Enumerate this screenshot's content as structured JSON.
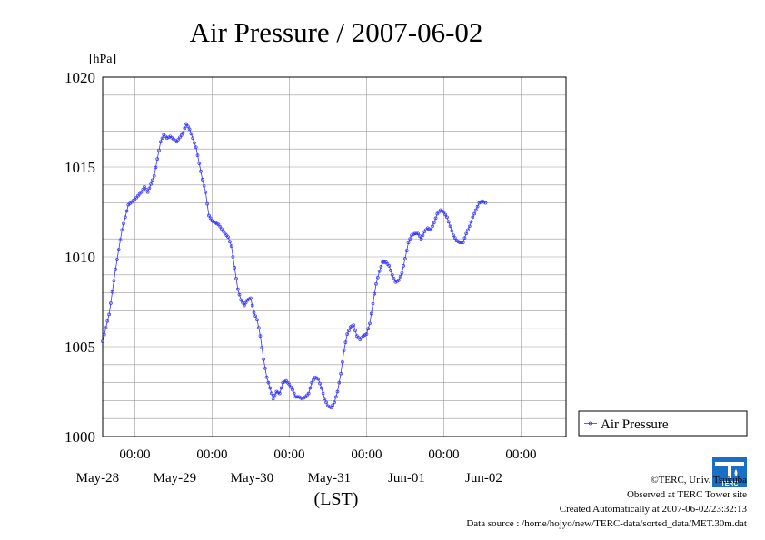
{
  "chart_data": {
    "type": "line",
    "title": "Air Pressure / 2007-06-02",
    "ylabel": "[hPa]",
    "xlabel": "(LST)",
    "ylim": [
      1000,
      1020
    ],
    "yticks": [
      1000,
      1005,
      1010,
      1015,
      1020
    ],
    "xlim": [
      0,
      144
    ],
    "x_unit": "hours from 2007-05-27 14:00 LST (data column hidden - date labels shown below)",
    "x_tick_time_label": "00:00",
    "x_ticks": [
      {
        "time": "00:00",
        "date": "May-28"
      },
      {
        "time": "00:00",
        "date": "May-29"
      },
      {
        "time": "00:00",
        "date": "May-30"
      },
      {
        "time": "00:00",
        "date": "May-31"
      },
      {
        "time": "00:00",
        "date": "Jun-01"
      },
      {
        "time": "00:00",
        "date": "Jun-02"
      }
    ],
    "grid": true,
    "legend_position": "right",
    "series_color": "#3333ff",
    "series": [
      {
        "name": "Air Pressure",
        "key_points": [
          [
            0,
            1005.3
          ],
          [
            2,
            1006.8
          ],
          [
            4,
            1009.3
          ],
          [
            6,
            1011.5
          ],
          [
            8,
            1012.9
          ],
          [
            10,
            1013.2
          ],
          [
            12,
            1013.6
          ],
          [
            13,
            1013.9
          ],
          [
            14,
            1013.6
          ],
          [
            16,
            1014.5
          ],
          [
            18,
            1016.4
          ],
          [
            19,
            1016.8
          ],
          [
            20,
            1016.6
          ],
          [
            21,
            1016.7
          ],
          [
            23,
            1016.4
          ],
          [
            25,
            1016.9
          ],
          [
            26,
            1017.4
          ],
          [
            27,
            1017.1
          ],
          [
            28,
            1016.6
          ],
          [
            29,
            1016.1
          ],
          [
            30,
            1015.2
          ],
          [
            31,
            1014.3
          ],
          [
            32,
            1013.6
          ],
          [
            33,
            1012.3
          ],
          [
            34,
            1012.0
          ],
          [
            36,
            1011.8
          ],
          [
            38,
            1011.3
          ],
          [
            39,
            1011.1
          ],
          [
            40,
            1010.6
          ],
          [
            41,
            1009.4
          ],
          [
            42,
            1008.2
          ],
          [
            43,
            1007.6
          ],
          [
            44,
            1007.3
          ],
          [
            45,
            1007.6
          ],
          [
            46,
            1007.7
          ],
          [
            47,
            1006.9
          ],
          [
            48,
            1006.5
          ],
          [
            49,
            1005.6
          ],
          [
            50,
            1004.3
          ],
          [
            51,
            1003.3
          ],
          [
            52,
            1002.7
          ],
          [
            53,
            1002.1
          ],
          [
            54,
            1002.5
          ],
          [
            55,
            1002.4
          ],
          [
            56,
            1003.0
          ],
          [
            57,
            1003.1
          ],
          [
            58,
            1002.9
          ],
          [
            59,
            1002.6
          ],
          [
            60,
            1002.2
          ],
          [
            61,
            1002.2
          ],
          [
            62,
            1002.1
          ],
          [
            63,
            1002.2
          ],
          [
            64,
            1002.4
          ],
          [
            65,
            1003.0
          ],
          [
            66,
            1003.3
          ],
          [
            67,
            1003.2
          ],
          [
            68,
            1002.7
          ],
          [
            69,
            1002.1
          ],
          [
            70,
            1001.7
          ],
          [
            71,
            1001.6
          ],
          [
            72,
            1001.9
          ],
          [
            73,
            1002.5
          ],
          [
            74,
            1003.5
          ],
          [
            75,
            1004.8
          ],
          [
            76,
            1005.7
          ],
          [
            77,
            1006.1
          ],
          [
            78,
            1006.2
          ],
          [
            79,
            1005.6
          ],
          [
            80,
            1005.4
          ],
          [
            81,
            1005.6
          ],
          [
            82,
            1005.7
          ],
          [
            83,
            1006.3
          ],
          [
            84,
            1007.4
          ],
          [
            85,
            1008.5
          ],
          [
            86,
            1009.2
          ],
          [
            87,
            1009.7
          ],
          [
            88,
            1009.7
          ],
          [
            89,
            1009.5
          ],
          [
            90,
            1009.0
          ],
          [
            91,
            1008.6
          ],
          [
            92,
            1008.7
          ],
          [
            93,
            1009.1
          ],
          [
            94,
            1009.9
          ],
          [
            95,
            1010.8
          ],
          [
            96,
            1011.2
          ],
          [
            97,
            1011.3
          ],
          [
            98,
            1011.3
          ],
          [
            99,
            1011.0
          ],
          [
            100,
            1011.4
          ],
          [
            101,
            1011.6
          ],
          [
            102,
            1011.5
          ],
          [
            103,
            1011.9
          ],
          [
            104,
            1012.4
          ],
          [
            105,
            1012.6
          ],
          [
            106,
            1012.5
          ],
          [
            107,
            1012.2
          ],
          [
            108,
            1011.7
          ],
          [
            109,
            1011.2
          ],
          [
            110,
            1010.9
          ],
          [
            111,
            1010.8
          ],
          [
            112,
            1010.8
          ],
          [
            113,
            1011.3
          ],
          [
            114,
            1011.7
          ],
          [
            115,
            1012.2
          ],
          [
            116,
            1012.6
          ],
          [
            117,
            1013.0
          ],
          [
            118,
            1013.1
          ],
          [
            119,
            1013.0
          ]
        ]
      }
    ]
  },
  "credits": {
    "copyright": "©TERC, Univ. Tsukuba",
    "observed": "Observed at TERC Tower site",
    "created": "Created Automatically at 2007-06-02/23:32:13",
    "source": "Data source : /home/hojyo/new/TERC-data/sorted_data/MET.30m.dat"
  },
  "logo": {
    "text": "TERC",
    "color": "#1a6fc4"
  }
}
